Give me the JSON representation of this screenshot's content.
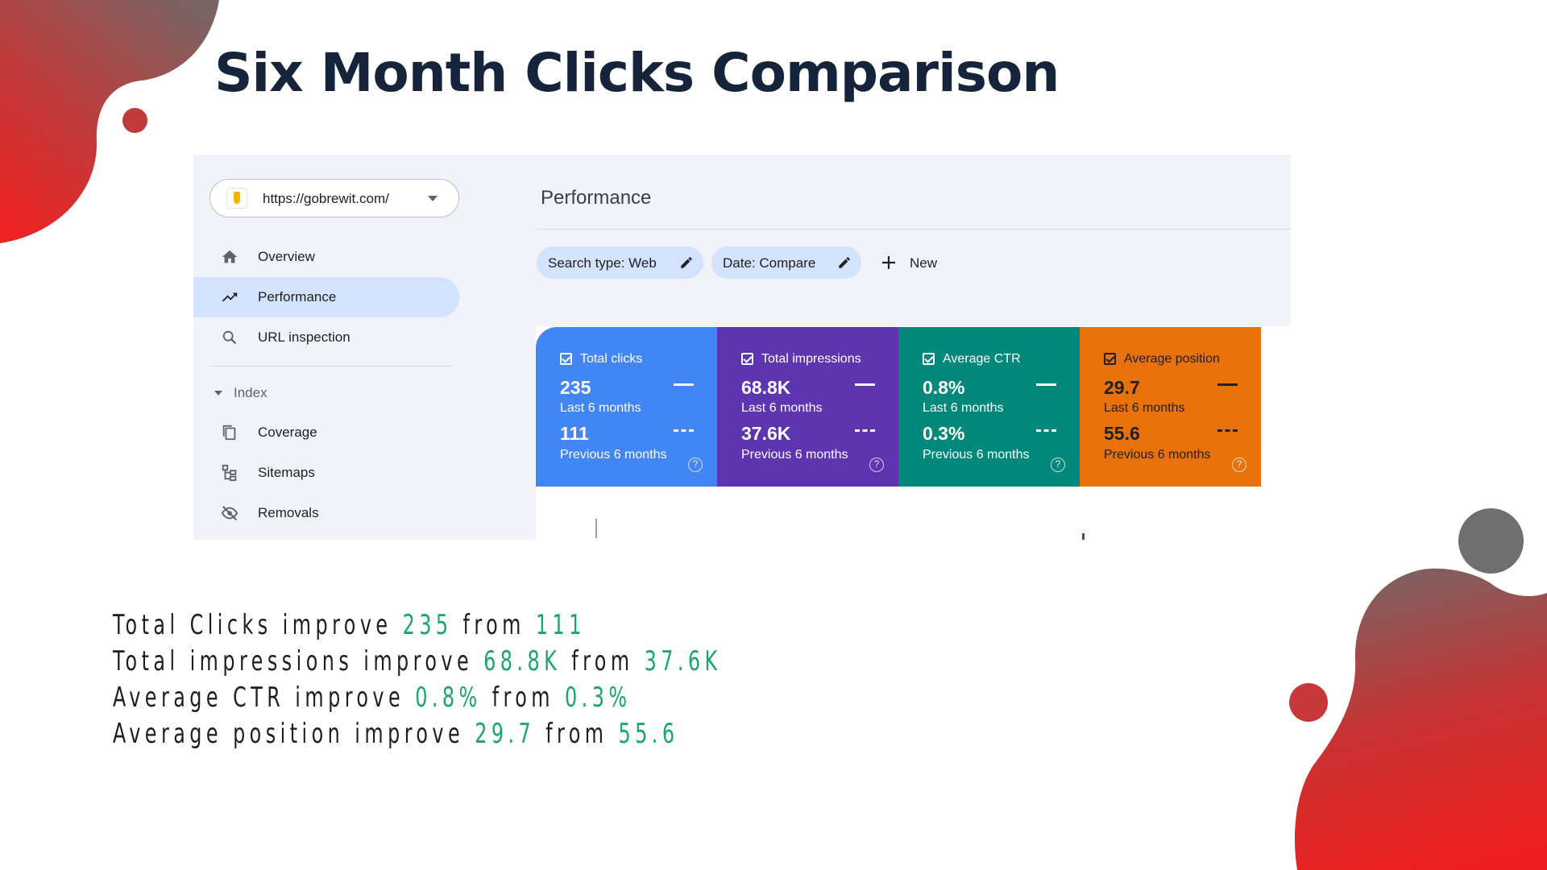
{
  "slide": {
    "title": "Six Month Clicks Comparison"
  },
  "sidebar": {
    "property_url": "https://gobrewit.com/",
    "items": [
      {
        "label": "Overview",
        "icon": "home-icon"
      },
      {
        "label": "Performance",
        "icon": "trending-icon",
        "active": true
      },
      {
        "label": "URL inspection",
        "icon": "search-icon"
      }
    ],
    "section_label": "Index",
    "index_items": [
      {
        "label": "Coverage",
        "icon": "coverage-icon"
      },
      {
        "label": "Sitemaps",
        "icon": "sitemap-icon"
      },
      {
        "label": "Removals",
        "icon": "removals-icon"
      }
    ]
  },
  "main": {
    "heading": "Performance",
    "filters": {
      "search_type": "Search type: Web",
      "date": "Date: Compare",
      "new_label": "New"
    }
  },
  "metrics": [
    {
      "label": "Total clicks",
      "current": "235",
      "current_period": "Last 6 months",
      "previous": "111",
      "previous_period": "Previous 6 months",
      "color": "#4285f4"
    },
    {
      "label": "Total impressions",
      "current": "68.8K",
      "current_period": "Last 6 months",
      "previous": "37.6K",
      "previous_period": "Previous 6 months",
      "color": "#5e35b1"
    },
    {
      "label": "Average CTR",
      "current": "0.8%",
      "current_period": "Last 6 months",
      "previous": "0.3%",
      "previous_period": "Previous 6 months",
      "color": "#00897b"
    },
    {
      "label": "Average position",
      "current": "29.7",
      "current_period": "Last 6 months",
      "previous": "55.6",
      "previous_period": "Previous 6 months",
      "color": "#e8710a"
    }
  ],
  "summary": [
    {
      "prefix": "Total Clicks improve",
      "current": "235",
      "mid": "from",
      "previous": "111"
    },
    {
      "prefix": "Total impressions improve",
      "current": "68.8K",
      "mid": "from",
      "previous": "37.6K"
    },
    {
      "prefix": "Average CTR improve",
      "current": "0.8%",
      "mid": "from",
      "previous": "0.3%"
    },
    {
      "prefix": "Average position improve",
      "current": "29.7",
      "mid": "from",
      "previous": "55.6"
    }
  ],
  "colors": {
    "title": "#15243a",
    "highlight_numbers": "#18a66a",
    "decor_red": "#e8262a",
    "decor_gray": "#6d6d6d"
  }
}
